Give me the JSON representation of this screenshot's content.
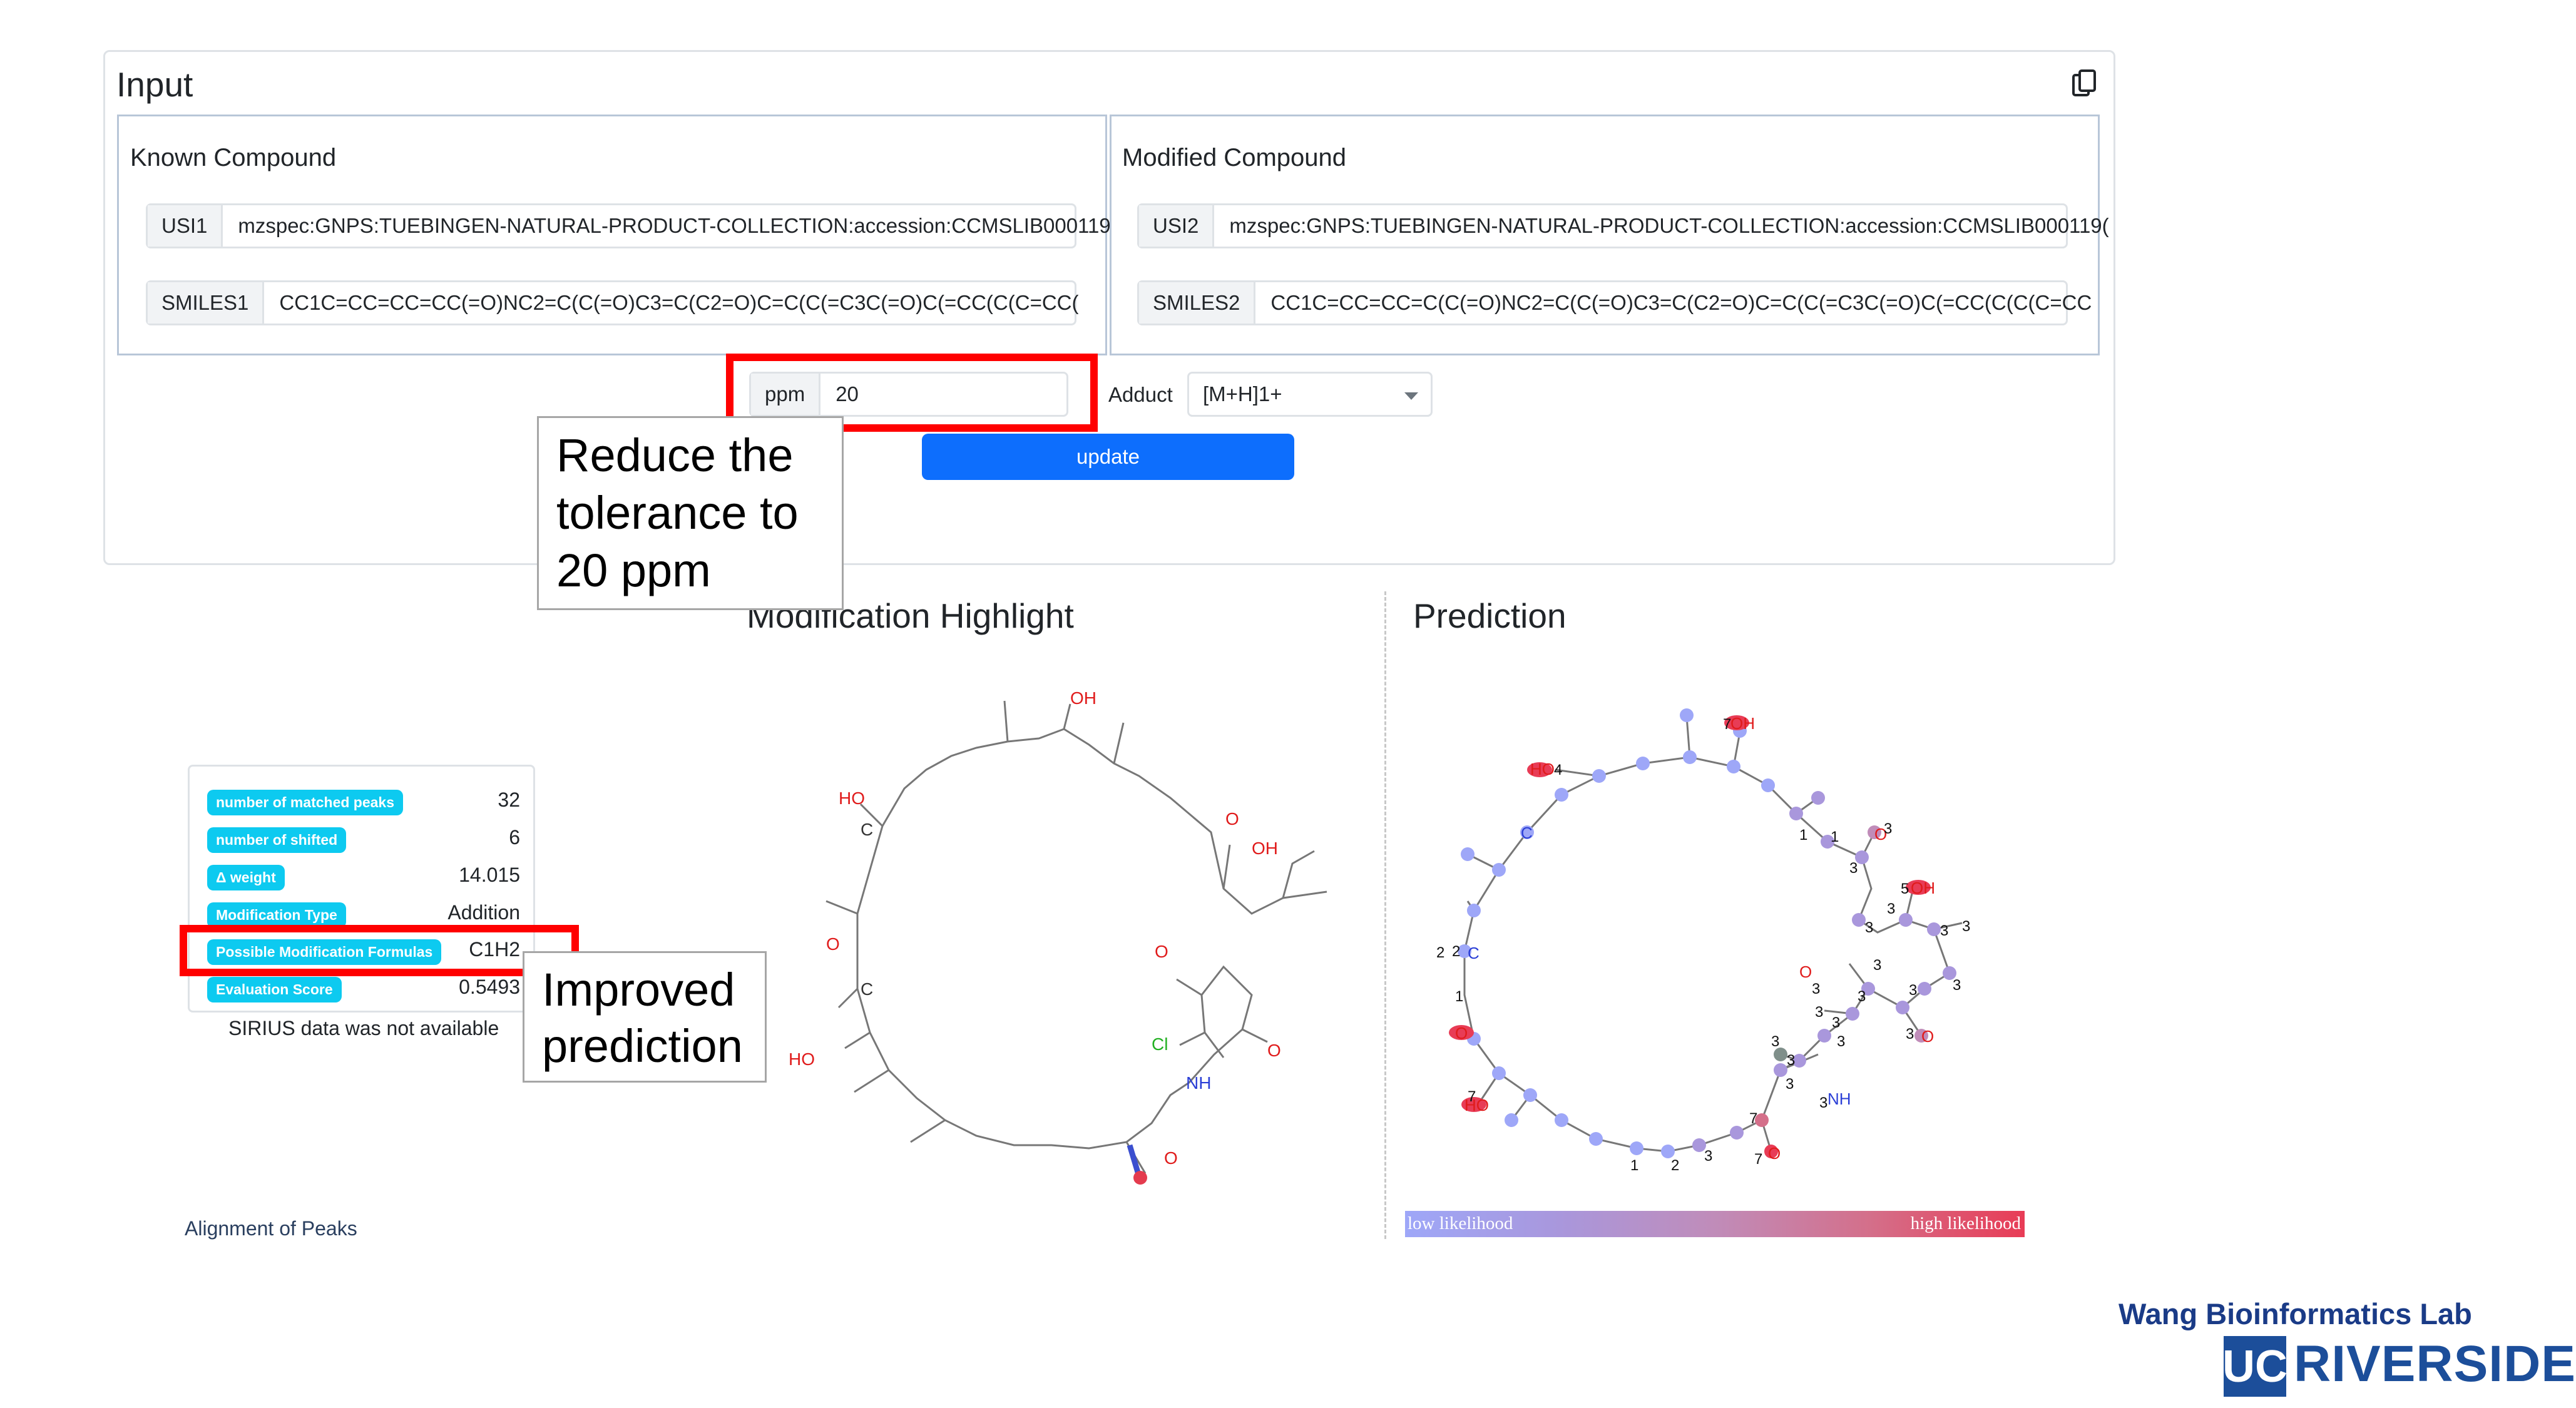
{
  "input": {
    "title": "Input",
    "known": {
      "title": "Known Compound",
      "usi_label": "USI1",
      "usi_value": "mzspec:GNPS:TUEBINGEN-NATURAL-PRODUCT-COLLECTION:accession:CCMSLIB000119(",
      "smiles_label": "SMILES1",
      "smiles_value": "CC1C=CC=CC=CC(=O)NC2=C(C(=O)C3=C(C2=O)C=C(C(=C3C(=O)C(=CC(C(C=CC("
    },
    "modified": {
      "title": "Modified Compound",
      "usi_label": "USI2",
      "usi_value": "mzspec:GNPS:TUEBINGEN-NATURAL-PRODUCT-COLLECTION:accession:CCMSLIB000119(",
      "smiles_label": "SMILES2",
      "smiles_value": "CC1C=CC=CC=C(C(=O)NC2=C(C(=O)C3=C(C2=O)C=C(C(=C3C(=O)C(=CC(C(C(C=CC"
    },
    "ppm_label": "ppm",
    "ppm_value": "20",
    "adduct_label": "Adduct",
    "adduct_value": "[M+H]1+",
    "update_label": "update"
  },
  "annotations": {
    "tolerance_note": "Reduce the tolerance to 20 ppm",
    "improved_note": "Improved prediction"
  },
  "stats": [
    {
      "label": "number of matched peaks",
      "value": "32"
    },
    {
      "label": "number of shifted",
      "value": "6"
    },
    {
      "label": "Δ weight",
      "value": "14.015"
    },
    {
      "label": "Modification Type",
      "value": "Addition"
    },
    {
      "label": "Possible Modification Formulas",
      "value": "C1H2"
    },
    {
      "label": "Evaluation Score",
      "value": "0.5493"
    }
  ],
  "sirius_text": "SIRIUS data was not available",
  "alignment_text": "Alignment of Peaks",
  "highlight": {
    "title": "Modification Highlight",
    "atom_labels": [
      "OH",
      "HO",
      "C",
      "O",
      "OH",
      "O",
      "C",
      "O",
      "Cl",
      "NH",
      "O",
      "HO",
      "O"
    ]
  },
  "prediction": {
    "title": "Prediction",
    "atom_labels": [
      "OH",
      "HO",
      "C",
      "O",
      "OH",
      "O",
      "O",
      "C",
      "O",
      "NH",
      "O",
      "HO"
    ],
    "score_labels": [
      "7",
      "4",
      "1",
      "1",
      "3",
      "3",
      "5",
      "3",
      "3",
      "3",
      "3",
      "3",
      "3",
      "3",
      "3",
      "3",
      "3",
      "3",
      "3",
      "3",
      "3",
      "2",
      "2",
      "1",
      "7",
      "3",
      "3",
      "3",
      "7",
      "7",
      "3",
      "2",
      "1"
    ],
    "legend_low": "low likelihood",
    "legend_high": "high likelihood"
  },
  "footer": {
    "lab": "Wang Bioinformatics Lab",
    "uc": "UC",
    "riverside": "RIVERSIDE"
  },
  "colors": {
    "primary": "#0d6efd",
    "badge": "#0dcaf0",
    "highlight_red": "#ff0000",
    "brand_blue": "#1c4e9a"
  }
}
